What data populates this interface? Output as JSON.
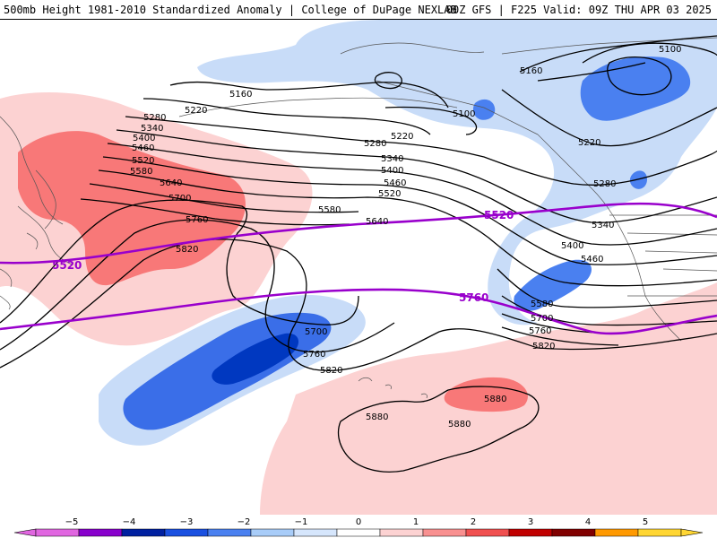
{
  "header": {
    "left_title": "500mb Height 1981-2010 Standardized Anomaly | College of DuPage NEXLAB",
    "right_title": "00Z GFS | F225 Valid: 09Z THU APR 03 2025"
  },
  "contour_labels": {
    "c5100a": "5100",
    "c5100b": "5100",
    "c5160a": "5160",
    "c5160b": "5160",
    "c5220a": "5220",
    "c5220b": "5220",
    "c5220c": "5220",
    "c5280a": "5280",
    "c5280b": "5280",
    "c5280c": "5280",
    "c5340a": "5340",
    "c5340b": "5340",
    "c5340c": "5340",
    "c5400a": "5400",
    "c5400b": "5400",
    "c5400c": "5400",
    "c5460a": "5460",
    "c5460b": "5460",
    "c5460c": "5460",
    "c5520a": "5520",
    "c5520b": "5520",
    "c5580a": "5580",
    "c5580b": "5580",
    "c5580c": "5580",
    "c5640a": "5640",
    "c5640b": "5640",
    "c5700a": "5700",
    "c5700b": "5700",
    "c5700c": "5700",
    "c5760a": "5760",
    "c5760b": "5760",
    "c5760c": "5760",
    "c5820a": "5820",
    "c5820b": "5820",
    "c5820c": "5820",
    "c5880a": "5880",
    "c5880b": "5880",
    "c5880c": "5880"
  },
  "highlight_labels": {
    "p5520a": "5520",
    "p5520b": "5520",
    "p5760": "5760"
  },
  "colors": {
    "highlight_contour": "#9900cc",
    "anomaly": [
      "#e066e0",
      "#8800cc",
      "#0020a0",
      "#1a50e0",
      "#4a80f0",
      "#a8ccf8",
      "#d6e6fc",
      "#ffffff",
      "#fcd2d2",
      "#f89090",
      "#f05050",
      "#c00000",
      "#800000",
      "#ff9900",
      "#ffd633"
    ]
  },
  "colorbar": {
    "tick_labels": [
      "−5",
      "−4",
      "−3",
      "−2",
      "−1",
      "0",
      "1",
      "2",
      "3",
      "4",
      "5"
    ]
  }
}
